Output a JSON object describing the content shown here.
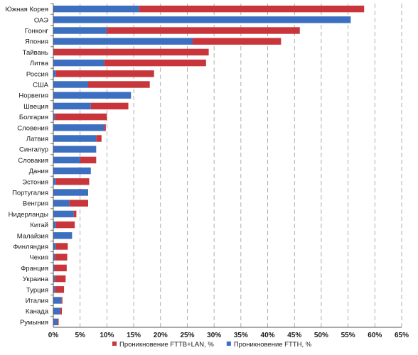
{
  "chart_data": {
    "type": "bar",
    "orientation": "horizontal",
    "stacked": true,
    "categories": [
      "Южная Корея",
      "ОАЭ",
      "Гонконг",
      "Япония",
      "Тайвань",
      "Литва",
      "Россия",
      "США",
      "Норвегия",
      "Швеция",
      "Болгария",
      "Словения",
      "Латвия",
      "Сингапур",
      "Словакия",
      "Дания",
      "Эстония",
      "Португалия",
      "Венгрия",
      "Нидерланды",
      "Китай",
      "Малайзия",
      "Финляндия",
      "Чехия",
      "Франция",
      "Украина",
      "Турция",
      "Италия",
      "Канада",
      "Румыния"
    ],
    "series": [
      {
        "name": "Проникновение  FTTH, %",
        "color": "#3d6fc0",
        "values": [
          16,
          55.5,
          10,
          26,
          0,
          9.5,
          0.5,
          6.5,
          14.5,
          7,
          0.3,
          9.5,
          8,
          8,
          5,
          7,
          0.5,
          6.5,
          3,
          3.8,
          0.5,
          3.5,
          0.5,
          0.3,
          0.2,
          0.3,
          0.3,
          1.5,
          1.3,
          0.8
        ]
      },
      {
        "name": "Проникновение  FTTB+LAN, %",
        "color": "#c8363b",
        "values": [
          42,
          0,
          36,
          16.5,
          29,
          19,
          18.3,
          11.5,
          0,
          7,
          9.7,
          0.3,
          1,
          0,
          3,
          0,
          6.2,
          0,
          3.5,
          0.5,
          3.5,
          0,
          2.2,
          2.3,
          2.3,
          2,
          1.7,
          0.2,
          0.3,
          0.2
        ]
      }
    ],
    "xlim": [
      0,
      65
    ],
    "xticks": [
      "0%",
      "5%",
      "10%",
      "15%",
      "20%",
      "25%",
      "30%",
      "35%",
      "40%",
      "45%",
      "50%",
      "55%",
      "60%",
      "65%"
    ],
    "grid": "vertical-dashed",
    "legend_position": "bottom-right",
    "legend_order": [
      1,
      0
    ],
    "title": "",
    "xlabel": "",
    "ylabel": ""
  }
}
